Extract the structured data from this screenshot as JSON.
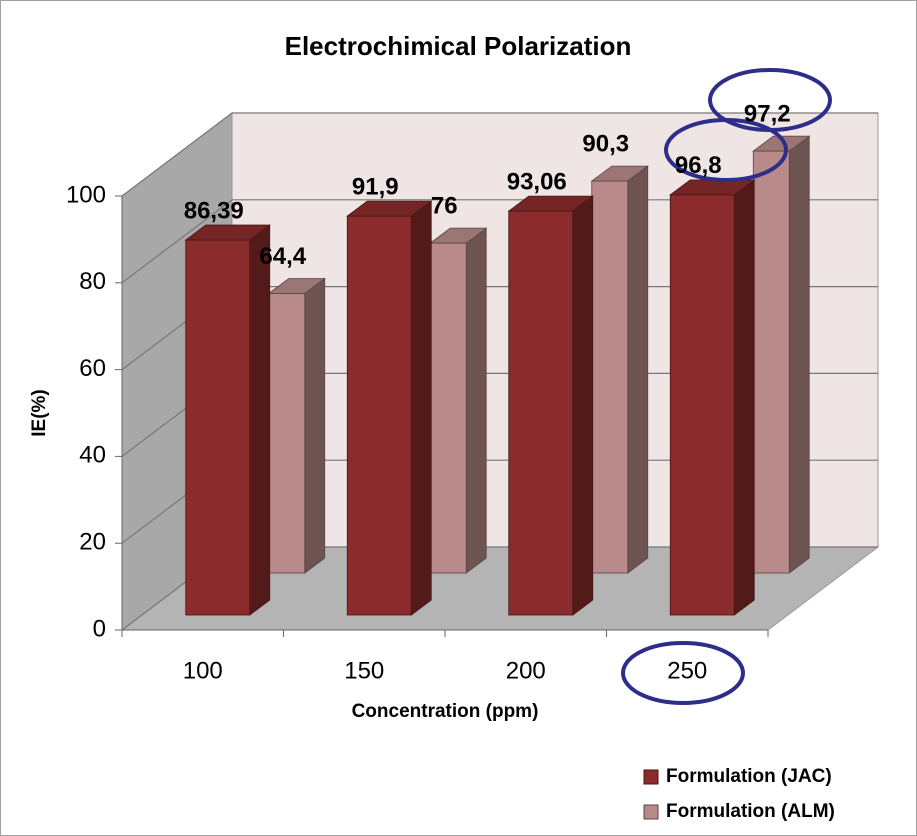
{
  "chart_data": {
    "type": "bar3d",
    "title": "Electrochimical  Polarization",
    "x_label": "Concentration (ppm)",
    "y_label": "IE(%)",
    "categories": [
      "100",
      "150",
      "200",
      "250"
    ],
    "series": [
      {
        "name": "Formulation (JAC)",
        "color": "#8b2b2b",
        "values": [
          86.39,
          91.9,
          93.06,
          96.8
        ],
        "value_labels": [
          "86,39",
          "91,9",
          "93,06",
          "96,8"
        ]
      },
      {
        "name": "Formulation (ALM)",
        "color": "#b88a8a",
        "values": [
          64.4,
          76,
          90.3,
          97.2
        ],
        "value_labels": [
          "64,4",
          "76",
          "90,3",
          "97,2"
        ]
      }
    ],
    "ylim": [
      0,
      100
    ],
    "yticks": [
      0,
      20,
      40,
      60,
      80,
      100
    ],
    "grid": true
  }
}
